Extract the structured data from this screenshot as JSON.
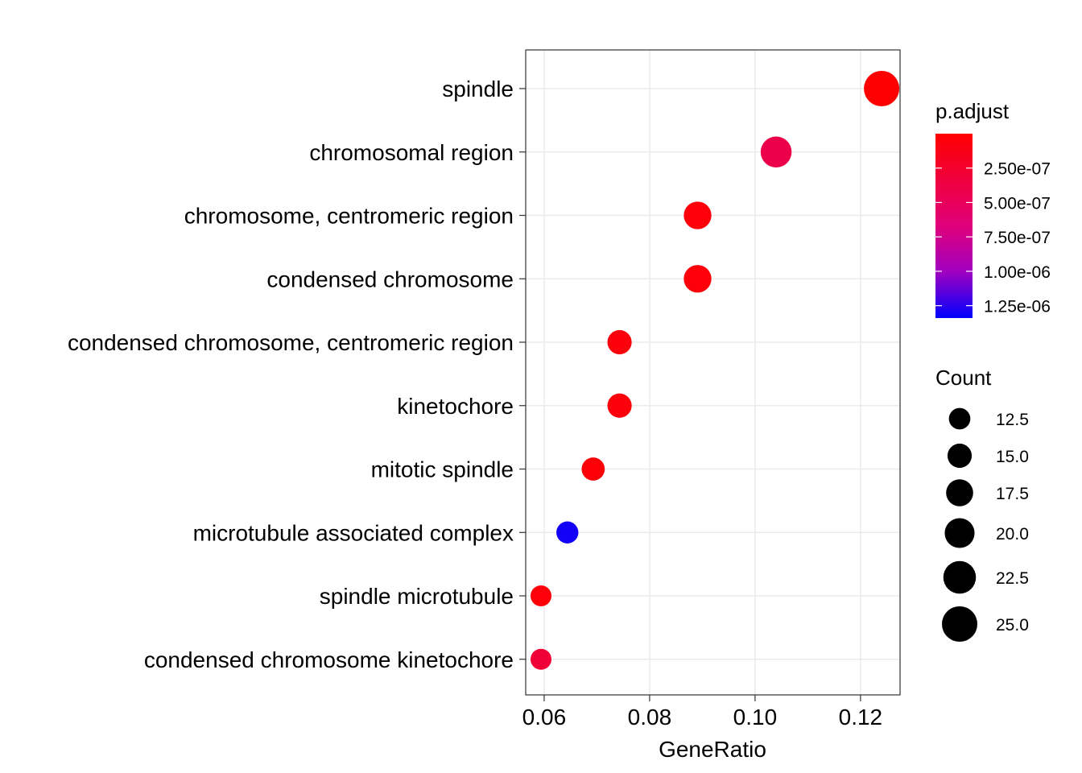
{
  "chart_data": {
    "type": "scatter",
    "title": "",
    "xlabel": "GeneRatio",
    "ylabel": "",
    "xlim": [
      0.0565,
      0.1275
    ],
    "xticks": [
      0.06,
      0.08,
      0.1,
      0.12
    ],
    "xtick_labels": [
      "0.06",
      "0.08",
      "0.10",
      "0.12"
    ],
    "grid": true,
    "categories": [
      "spindle",
      "chromosomal region",
      "chromosome, centromeric region",
      "condensed chromosome",
      "condensed chromosome, centromeric region",
      "kinetochore",
      "mitotic spindle",
      "microtubule associated complex",
      "spindle microtubule",
      "condensed chromosome kinetochore"
    ],
    "points": [
      {
        "term": "spindle",
        "gene_ratio": 0.124,
        "count": 25,
        "p_adjust": 1e-08
      },
      {
        "term": "chromosomal region",
        "gene_ratio": 0.104,
        "count": 21,
        "p_adjust": 4.2e-07
      },
      {
        "term": "chromosome, centromeric region",
        "gene_ratio": 0.0891,
        "count": 18,
        "p_adjust": 5e-08
      },
      {
        "term": "condensed chromosome",
        "gene_ratio": 0.0891,
        "count": 18,
        "p_adjust": 5e-08
      },
      {
        "term": "condensed chromosome, centromeric region",
        "gene_ratio": 0.0743,
        "count": 15,
        "p_adjust": 6e-08
      },
      {
        "term": "kinetochore",
        "gene_ratio": 0.0743,
        "count": 15,
        "p_adjust": 6e-08
      },
      {
        "term": "mitotic spindle",
        "gene_ratio": 0.0693,
        "count": 14,
        "p_adjust": 4e-08
      },
      {
        "term": "microtubule associated complex",
        "gene_ratio": 0.0644,
        "count": 13,
        "p_adjust": 1.3e-06
      },
      {
        "term": "spindle microtubule",
        "gene_ratio": 0.0594,
        "count": 12,
        "p_adjust": 5e-08
      },
      {
        "term": "condensed chromosome kinetochore",
        "gene_ratio": 0.0594,
        "count": 12,
        "p_adjust": 3e-07
      }
    ],
    "color_legend": {
      "title": "p.adjust",
      "low_color": "#FF0000",
      "high_color": "#0000FF",
      "range": [
        0,
        1.34e-06
      ],
      "breaks": [
        2.5e-07,
        5e-07,
        7.5e-07,
        1e-06,
        1.25e-06
      ],
      "labels": [
        "2.50e-07",
        "5.00e-07",
        "7.50e-07",
        "1.00e-06",
        "1.25e-06"
      ]
    },
    "size_legend": {
      "title": "Count",
      "breaks": [
        12.5,
        15.0,
        17.5,
        20.0,
        22.5,
        25.0
      ],
      "labels": [
        "12.5",
        "15.0",
        "17.5",
        "20.0",
        "22.5",
        "25.0"
      ],
      "range": [
        12,
        25
      ],
      "color": "#000000"
    },
    "legend_position": "right"
  }
}
